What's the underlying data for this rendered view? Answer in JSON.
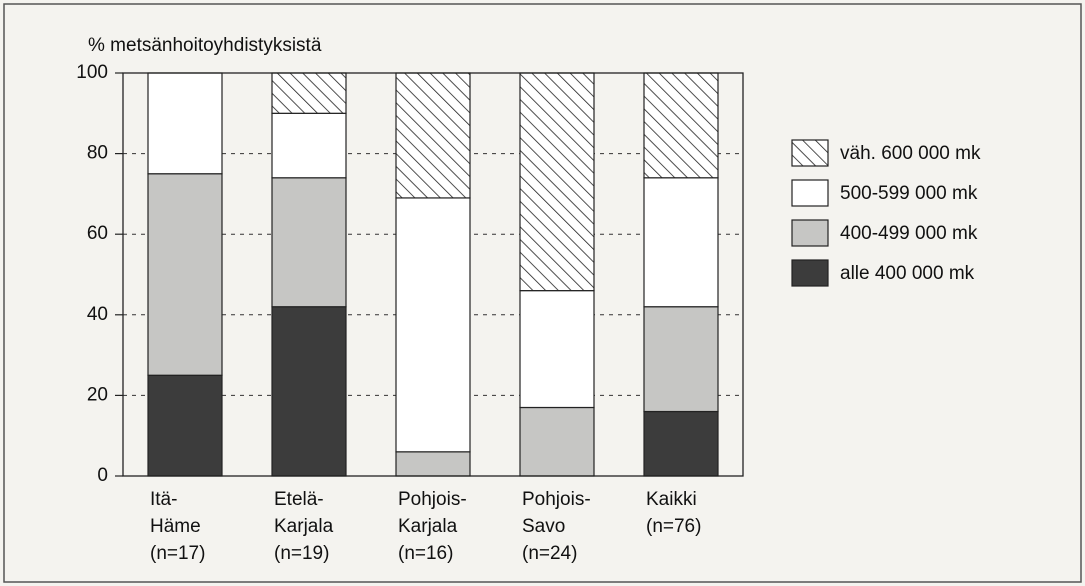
{
  "chart_data": {
    "type": "stacked_bar",
    "y_axis_label": "% metsänhoitoyhdistyksistä",
    "categories": [
      "Itä-\nHäme\n(n=17)",
      "Etelä-\nKarjala\n(n=19)",
      "Pohjois-\nKarjala\n(n=16)",
      "Pohjois-\nSavo\n(n=24)",
      "Kaikki\n(n=76)"
    ],
    "series": [
      {
        "name": "alle 400 000 mk",
        "color": "#3c3c3c",
        "values": [
          25,
          42,
          0,
          0,
          16
        ]
      },
      {
        "name": "400-499 000 mk",
        "color": "#c6c6c4",
        "values": [
          50,
          32,
          6,
          17,
          26
        ]
      },
      {
        "name": "500-599 000 mk",
        "color": "#ffffff",
        "values": [
          25,
          16,
          63,
          29,
          32
        ]
      },
      {
        "name": "väh. 600 000 mk",
        "color": "#ffffff",
        "pattern": "hatch",
        "values": [
          0,
          10,
          31,
          54,
          26
        ]
      }
    ],
    "ylim": [
      0,
      100
    ],
    "yticks": [
      0,
      20,
      40,
      60,
      80,
      100
    ],
    "grid": true
  }
}
